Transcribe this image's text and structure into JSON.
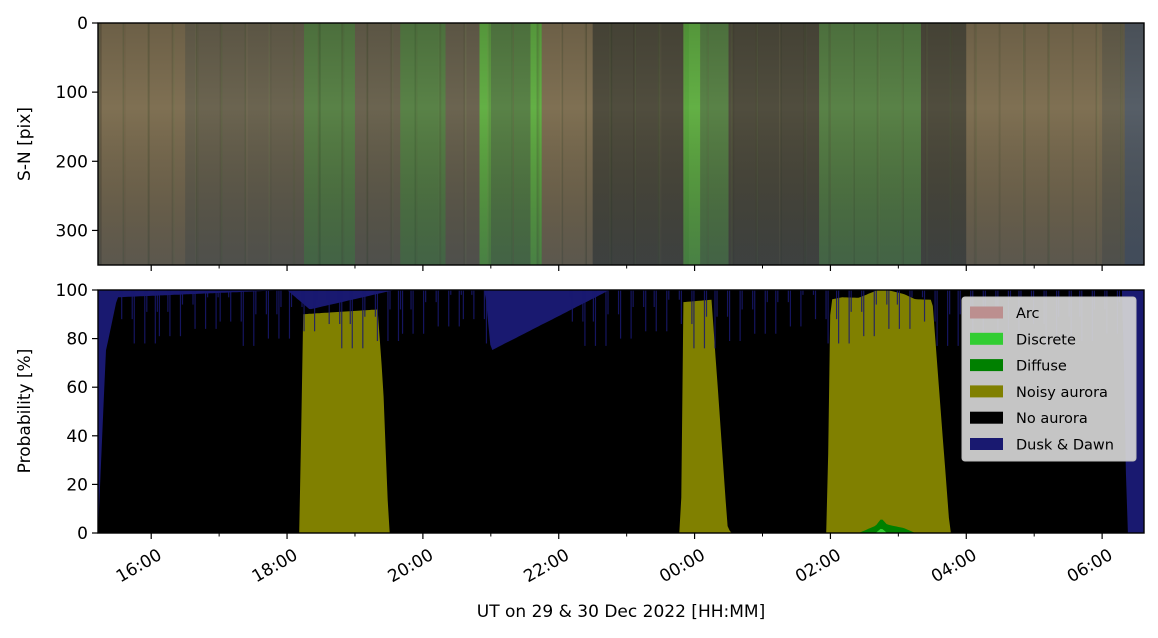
{
  "chart_data": [
    {
      "type": "heatmap",
      "title": "",
      "ylabel": "S-N [pix]",
      "ylim": [
        350,
        0
      ],
      "yticks": [
        0,
        100,
        200,
        300
      ],
      "colors": {
        "base": "#6b6450",
        "tan": "#8f7a55",
        "dark": "#3a3a30",
        "green": "#4a9a40",
        "bright_green": "#5fd040",
        "blue": "#465a7a"
      },
      "bands": [
        {
          "t_start": "15:15",
          "t_end": "16:30",
          "tone": "tan"
        },
        {
          "t_start": "17:45",
          "t_end": "18:15",
          "tone": "base"
        },
        {
          "t_start": "18:15",
          "t_end": "19:00",
          "tone": "green"
        },
        {
          "t_start": "19:40",
          "t_end": "20:20",
          "tone": "green"
        },
        {
          "t_start": "20:50",
          "t_end": "21:00",
          "tone": "bright_green"
        },
        {
          "t_start": "21:00",
          "t_end": "21:35",
          "tone": "green"
        },
        {
          "t_start": "21:35",
          "t_end": "21:45",
          "tone": "bright_green"
        },
        {
          "t_start": "21:45",
          "t_end": "22:30",
          "tone": "tan"
        },
        {
          "t_start": "22:30",
          "t_end": "23:55",
          "tone": "dark"
        },
        {
          "t_start": "23:50",
          "t_end": "00:05",
          "tone": "bright_green"
        },
        {
          "t_start": "00:05",
          "t_end": "00:30",
          "tone": "green"
        },
        {
          "t_start": "00:30",
          "t_end": "01:50",
          "tone": "dark"
        },
        {
          "t_start": "01:50",
          "t_end": "03:20",
          "tone": "green"
        },
        {
          "t_start": "03:20",
          "t_end": "04:00",
          "tone": "dark"
        },
        {
          "t_start": "04:00",
          "t_end": "06:00",
          "tone": "tan"
        },
        {
          "t_start": "06:20",
          "t_end": "06:37",
          "tone": "blue"
        }
      ]
    },
    {
      "type": "area",
      "title": "",
      "ylabel": "Probability [%]",
      "xlabel": "UT on 29 & 30 Dec 2022 [HH:MM]",
      "ylim": [
        0,
        100
      ],
      "yticks": [
        0,
        20,
        40,
        60,
        80,
        100
      ],
      "xlim": [
        "15:13",
        "06:37"
      ],
      "xticks": [
        "16:00",
        "18:00",
        "20:00",
        "22:00",
        "00:00",
        "02:00",
        "04:00",
        "06:00"
      ],
      "legend": {
        "position": "top-right",
        "entries": [
          {
            "label": "Arc",
            "color": "#bc8f8f"
          },
          {
            "label": "Discrete",
            "color": "#32cd32"
          },
          {
            "label": "Diffuse",
            "color": "#008000"
          },
          {
            "label": "Noisy aurora",
            "color": "#808000"
          },
          {
            "label": "No aurora",
            "color": "#000000"
          },
          {
            "label": "Dusk & Dawn",
            "color": "#191970"
          }
        ]
      },
      "series": [
        {
          "name": "Noisy aurora",
          "color": "#808000",
          "x": [
            "15:13",
            "17:55",
            "18:12",
            "18:13",
            "19:20",
            "19:25",
            "19:30",
            "23:48",
            "23:50",
            "00:15",
            "00:29",
            "00:32",
            "01:57",
            "02:00",
            "02:10",
            "03:30",
            "03:45",
            "03:46",
            "06:37"
          ],
          "values": [
            0,
            0,
            0,
            90,
            92,
            60,
            0,
            0,
            95,
            96,
            3,
            0,
            0,
            96,
            97,
            96,
            4,
            0,
            0
          ]
        },
        {
          "name": "No aurora",
          "color": "#000000",
          "x": [
            "15:15",
            "15:25",
            "18:10",
            "18:25",
            "19:15",
            "19:30",
            "20:55",
            "21:05",
            "22:40",
            "23:45",
            "00:35",
            "01:55",
            "02:20",
            "03:50",
            "06:20",
            "06:22",
            "06:37"
          ],
          "values": [
            70,
            97,
            97,
            8,
            8,
            97,
            97,
            80,
            97,
            97,
            97,
            97,
            4,
            97,
            97,
            0,
            0
          ]
        },
        {
          "name": "Dusk & Dawn",
          "color": "#191970",
          "x": [
            "15:13",
            "15:20",
            "15:30",
            "18:00",
            "18:20",
            "19:35",
            "20:55",
            "21:00",
            "22:45",
            "23:48",
            "00:30",
            "01:57",
            "03:45",
            "06:18",
            "06:22",
            "06:37"
          ],
          "values": [
            100,
            25,
            3,
            0,
            8,
            0,
            0,
            25,
            0,
            0,
            0,
            0,
            0,
            0,
            100,
            100
          ]
        },
        {
          "name": "Diffuse",
          "color": "#008000",
          "x": [
            "02:25",
            "02:35",
            "02:45",
            "02:55",
            "03:05",
            "03:15"
          ],
          "values": [
            0,
            2,
            4,
            3,
            2,
            0
          ]
        },
        {
          "name": "Discrete",
          "color": "#32cd32",
          "x": [
            "02:40",
            "02:45",
            "02:50"
          ],
          "values": [
            0,
            2,
            0
          ]
        },
        {
          "name": "Arc",
          "color": "#bc8f8f",
          "x": [],
          "values": []
        }
      ]
    }
  ]
}
